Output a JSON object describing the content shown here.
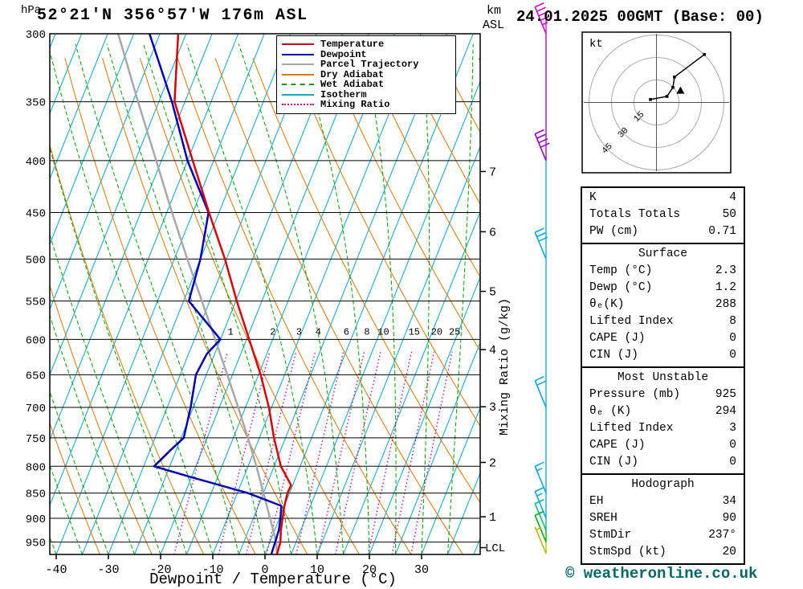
{
  "header": {
    "title": "52°21'N 356°57'W 176m ASL",
    "date": "24.01.2025 00GMT (Base: 00)"
  },
  "axes": {
    "pressure_unit": "hPa",
    "pressure_ticks": [
      300,
      350,
      400,
      450,
      500,
      550,
      600,
      650,
      700,
      750,
      800,
      850,
      900,
      950
    ],
    "temp_ticks": [
      -40,
      -30,
      -20,
      -10,
      0,
      10,
      20,
      30
    ],
    "xlabel": "Dewpoint / Temperature (°C)",
    "km_label_top": "km",
    "km_label_bottom": "ASL",
    "km_ticks": [
      {
        "km": 7,
        "p": 410
      },
      {
        "km": 6,
        "p": 470
      },
      {
        "km": 5,
        "p": 538
      },
      {
        "km": 4,
        "p": 614
      },
      {
        "km": 3,
        "p": 699
      },
      {
        "km": 2,
        "p": 793
      },
      {
        "km": 1,
        "p": 897
      }
    ],
    "lcl_label": "LCL",
    "lcl_pressure": 962,
    "mixing_ratio_axis_label": "Mixing Ratio (g/kg)"
  },
  "legend": [
    {
      "label": "Temperature",
      "color": "#dd0000",
      "style": "solid"
    },
    {
      "label": "Dewpoint",
      "color": "#0000bb",
      "style": "solid"
    },
    {
      "label": "Parcel Trajectory",
      "color": "#a8a8a8",
      "style": "solid"
    },
    {
      "label": "Dry Adiabat",
      "color": "#dd7700",
      "style": "solid"
    },
    {
      "label": "Wet Adiabat",
      "color": "#00a000",
      "style": "dashed"
    },
    {
      "label": "Isotherm",
      "color": "#00aacc",
      "style": "solid"
    },
    {
      "label": "Mixing Ratio",
      "color": "#cc0088",
      "style": "dotted"
    }
  ],
  "colors": {
    "isotherm": "#00aacc",
    "dry_adiabat": "#dd7700",
    "wet_adiabat": "#00a000",
    "mixing_ratio": "#cc0088",
    "temperature": "#dd0000",
    "dewpoint": "#0000bb",
    "parcel": "#a8a8a8",
    "copyright": "#006666"
  },
  "chart_data": {
    "type": "skew-t-log-p",
    "pressure_range": [
      300,
      977
    ],
    "temp_axis_range": [
      -40,
      38
    ],
    "isotherm_step": 5,
    "dry_adiabat_step": 10,
    "wet_adiabat_step": 5,
    "mixing_ratio_values": [
      1,
      2,
      3,
      4,
      6,
      8,
      10,
      15,
      20,
      25
    ],
    "series": [
      {
        "name": "Parcel Trajectory",
        "color": "#a8a8a8",
        "points": [
          [
            977,
            2.3
          ],
          [
            950,
            1.2
          ],
          [
            900,
            -1.8
          ],
          [
            850,
            -5.0
          ],
          [
            800,
            -8.4
          ],
          [
            750,
            -12.2
          ],
          [
            700,
            -16.4
          ],
          [
            650,
            -21.0
          ],
          [
            600,
            -26.0
          ],
          [
            550,
            -31.5
          ],
          [
            500,
            -37.5
          ],
          [
            450,
            -44.0
          ],
          [
            400,
            -51.0
          ],
          [
            350,
            -59.0
          ],
          [
            300,
            -68.0
          ]
        ]
      },
      {
        "name": "Dewpoint",
        "color": "#0000bb",
        "points": [
          [
            977,
            1.2
          ],
          [
            950,
            1.0
          ],
          [
            925,
            0.8
          ],
          [
            900,
            0.2
          ],
          [
            875,
            -0.6
          ],
          [
            850,
            -8.0
          ],
          [
            820,
            -20.0
          ],
          [
            800,
            -28.0
          ],
          [
            770,
            -26.0
          ],
          [
            750,
            -24.5
          ],
          [
            700,
            -25.5
          ],
          [
            650,
            -27.0
          ],
          [
            620,
            -26.5
          ],
          [
            600,
            -25.0
          ],
          [
            580,
            -28.5
          ],
          [
            550,
            -34.0
          ],
          [
            500,
            -35.0
          ],
          [
            450,
            -37.0
          ],
          [
            400,
            -45.0
          ],
          [
            350,
            -52.5
          ],
          [
            300,
            -62.0
          ]
        ]
      },
      {
        "name": "Temperature",
        "color": "#dd0000",
        "points": [
          [
            977,
            2.3
          ],
          [
            950,
            2.0
          ],
          [
            925,
            1.2
          ],
          [
            900,
            0.6
          ],
          [
            875,
            0.0
          ],
          [
            850,
            -0.4
          ],
          [
            835,
            -0.3
          ],
          [
            800,
            -3.7
          ],
          [
            750,
            -7.2
          ],
          [
            700,
            -10.5
          ],
          [
            650,
            -14.6
          ],
          [
            600,
            -19.5
          ],
          [
            550,
            -24.8
          ],
          [
            500,
            -30.3
          ],
          [
            450,
            -36.9
          ],
          [
            400,
            -44.0
          ],
          [
            350,
            -52.0
          ],
          [
            300,
            -56.5
          ]
        ]
      }
    ],
    "wind_barbs": [
      {
        "pressure": 300,
        "speed_kt": 45,
        "color": "#cc00cc"
      },
      {
        "pressure": 400,
        "speed_kt": 40,
        "color": "#9900cc"
      },
      {
        "pressure": 500,
        "speed_kt": 30,
        "color": "#00aadd"
      },
      {
        "pressure": 700,
        "speed_kt": 20,
        "color": "#00aadd"
      },
      {
        "pressure": 850,
        "speed_kt": 15,
        "color": "#00aadd"
      },
      {
        "pressure": 900,
        "speed_kt": 15,
        "color": "#00aadd"
      },
      {
        "pressure": 925,
        "speed_kt": 10,
        "color": "#00bb77"
      },
      {
        "pressure": 950,
        "speed_kt": 10,
        "color": "#00aa00"
      },
      {
        "pressure": 975,
        "speed_kt": 5,
        "color": "#bbbb00"
      }
    ]
  },
  "hodograph": {
    "unit_label": "kt",
    "rings": [
      15,
      30,
      45
    ],
    "trace": [
      [
        -4,
        2
      ],
      [
        7,
        4
      ],
      [
        11,
        10
      ],
      [
        12,
        17
      ],
      [
        32,
        32
      ]
    ],
    "storm_motion": [
      16,
      8
    ]
  },
  "tables": [
    {
      "header": null,
      "rows": [
        [
          "K",
          "4"
        ],
        [
          "Totals Totals",
          "50"
        ],
        [
          "PW (cm)",
          "0.71"
        ]
      ]
    },
    {
      "header": "Surface",
      "rows": [
        [
          "Temp (°C)",
          "2.3"
        ],
        [
          "Dewp (°C)",
          "1.2"
        ],
        [
          "θₑ(K)",
          "288"
        ],
        [
          "Lifted Index",
          "8"
        ],
        [
          "CAPE (J)",
          "0"
        ],
        [
          "CIN (J)",
          "0"
        ]
      ]
    },
    {
      "header": "Most Unstable",
      "rows": [
        [
          "Pressure (mb)",
          "925"
        ],
        [
          "θₑ (K)",
          "294"
        ],
        [
          "Lifted Index",
          "3"
        ],
        [
          "CAPE (J)",
          "0"
        ],
        [
          "CIN (J)",
          "0"
        ]
      ]
    },
    {
      "header": "Hodograph",
      "rows": [
        [
          "EH",
          "34"
        ],
        [
          "SREH",
          "90"
        ],
        [
          "StmDir",
          "237°"
        ],
        [
          "StmSpd (kt)",
          "20"
        ]
      ]
    }
  ],
  "footer": {
    "copyright": "© weatheronline.co.uk"
  }
}
